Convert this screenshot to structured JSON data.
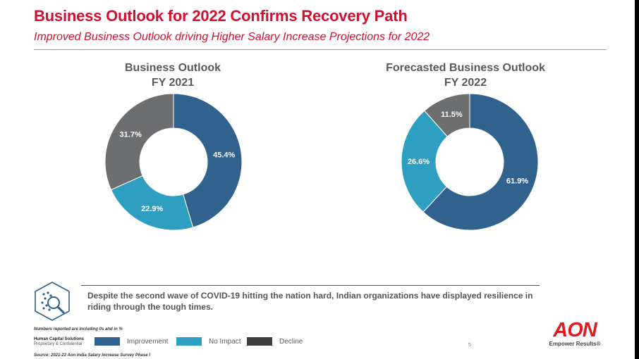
{
  "header": {
    "title": "Business Outlook for 2022 Confirms Recovery Path",
    "subtitle": "Improved Business Outlook driving Higher Salary Increase Projections for 2022"
  },
  "chart_data": [
    {
      "type": "pie",
      "title": [
        "Business Outlook",
        "FY 2021"
      ],
      "categories": [
        "Improvement",
        "No Impact",
        "Decline"
      ],
      "values": [
        45.4,
        22.9,
        31.7
      ],
      "labels": [
        "45.4%",
        "22.9%",
        "31.7%"
      ],
      "colors": [
        "#31628e",
        "#2e9fc1",
        "#6d6e70"
      ]
    },
    {
      "type": "pie",
      "title": [
        "Forecasted Business Outlook",
        "FY 2022"
      ],
      "categories": [
        "Improvement",
        "No Impact",
        "Decline"
      ],
      "values": [
        61.9,
        26.6,
        11.5
      ],
      "labels": [
        "61.9%",
        "26.6%",
        "11.5%"
      ],
      "colors": [
        "#31628e",
        "#2e9fc1",
        "#6d6e70"
      ]
    }
  ],
  "legend": [
    {
      "label": "Improvement",
      "color": "#31628e"
    },
    {
      "label": "No Impact",
      "color": "#2e9fc1"
    },
    {
      "label": "Decline",
      "color": "#3f3f41"
    }
  ],
  "message": "Despite the second wave of COVID-19 hitting the nation hard, Indian organizations have displayed resilience in riding through the tough times.",
  "footer": {
    "note": "Numbers reported are including 0s and in %",
    "org": "Human Capital Solutions",
    "confidential": "Proprietary & Confidential",
    "source": "Source: 2021-22 Aon India Salary Increase Survey Phase I",
    "page": "5"
  },
  "logo": {
    "wordmark": "AON",
    "tagline": "Empower Results®"
  }
}
